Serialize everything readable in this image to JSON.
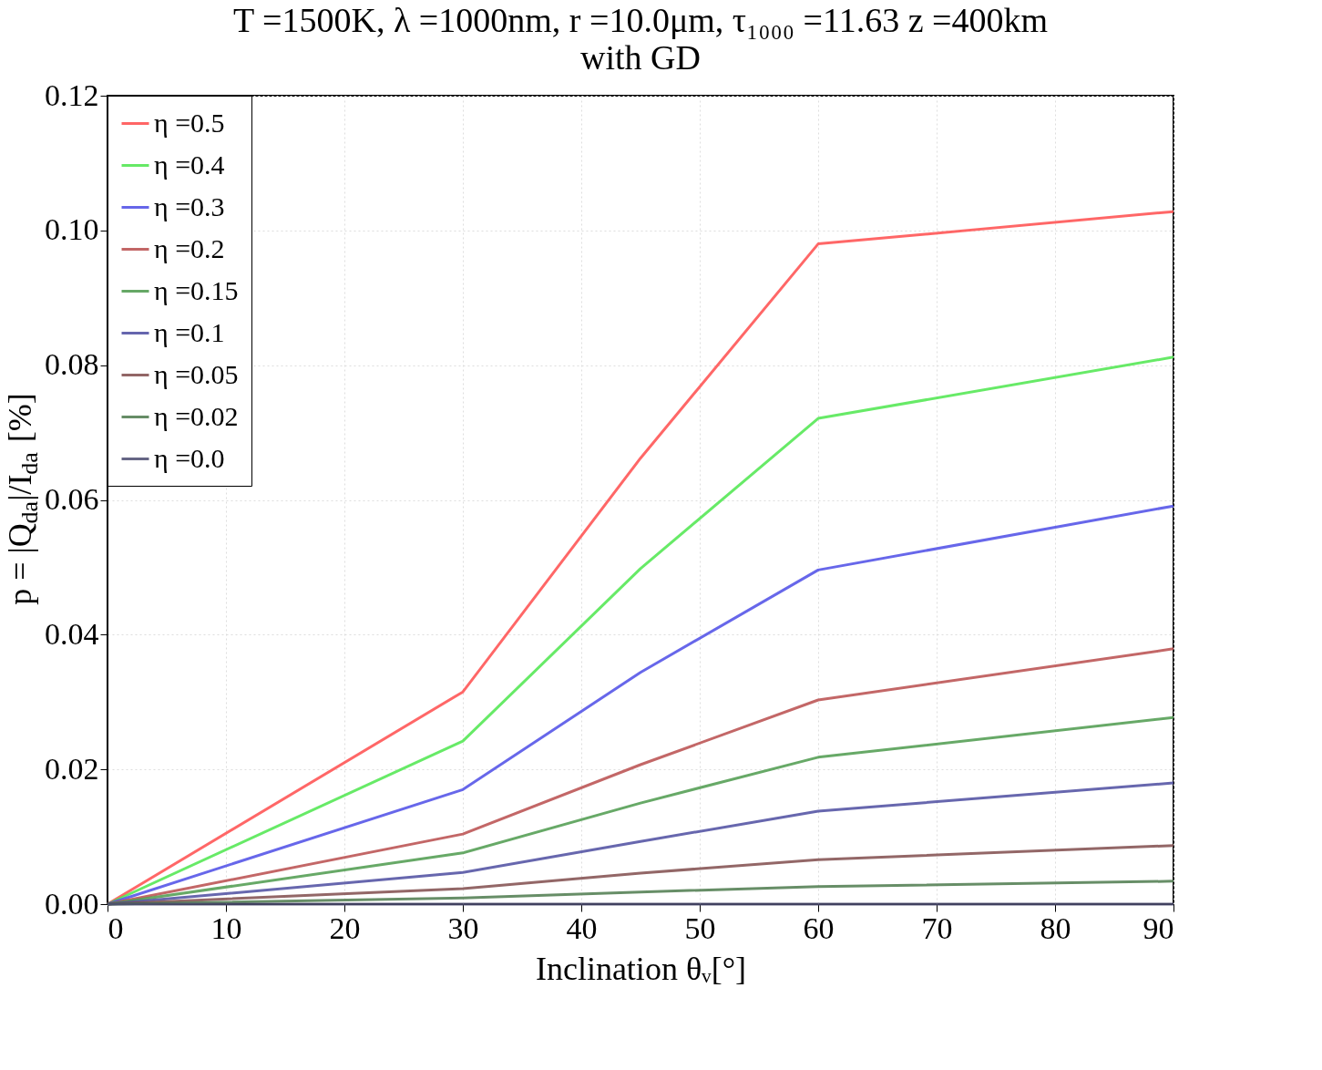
{
  "chart_data": {
    "type": "line",
    "title": "T =1500K, λ =1000nm, r =10.0μm, τ₁₀₀₀ =11.63 z =400km",
    "subtitle": "with GD",
    "xlabel": "Inclination θᵥ[°]",
    "ylabel": "p = |Q$_{da}$|/I$_{da}$ [%]",
    "x": [
      0,
      30,
      45,
      60,
      90
    ],
    "series": [
      {
        "name": "η =0.5",
        "color": "#ff4c4c",
        "values": [
          0,
          0.0315,
          0.0662,
          0.098,
          0.1028
        ]
      },
      {
        "name": "η =0.4",
        "color": "#4ce64c",
        "values": [
          0,
          0.0242,
          0.0498,
          0.0721,
          0.0812
        ]
      },
      {
        "name": "η =0.3",
        "color": "#4c4ce6",
        "values": [
          0,
          0.017,
          0.0344,
          0.0496,
          0.0591
        ]
      },
      {
        "name": "η =0.2",
        "color": "#b84c4c",
        "values": [
          0,
          0.0104,
          0.0207,
          0.0303,
          0.0379
        ]
      },
      {
        "name": "η =0.15",
        "color": "#4c9a4c",
        "values": [
          0,
          0.0076,
          0.015,
          0.0218,
          0.0277
        ]
      },
      {
        "name": "η =0.1",
        "color": "#4c4ca0",
        "values": [
          0,
          0.0047,
          0.0093,
          0.0138,
          0.018
        ]
      },
      {
        "name": "η =0.05",
        "color": "#804c4c",
        "values": [
          0,
          0.0023,
          0.0046,
          0.0066,
          0.0087
        ]
      },
      {
        "name": "η =0.02",
        "color": "#4c7a4c",
        "values": [
          0,
          0.0009,
          0.0018,
          0.0026,
          0.0034
        ]
      },
      {
        "name": "η =0.0",
        "color": "#4c4c70",
        "values": [
          0,
          0,
          0,
          0,
          0
        ]
      }
    ],
    "xlim": [
      0,
      90
    ],
    "xticks": [
      0,
      10,
      20,
      30,
      40,
      50,
      60,
      70,
      80,
      90
    ],
    "ylim": [
      0,
      0.12
    ],
    "yticks": [
      {
        "value": 0,
        "label": "0.00"
      },
      {
        "value": 0.02,
        "label": "0.02"
      },
      {
        "value": 0.04,
        "label": "0.04"
      },
      {
        "value": 0.06,
        "label": "0.06"
      },
      {
        "value": 0.08,
        "label": "0.08"
      },
      {
        "value": 0.1,
        "label": "0.10"
      },
      {
        "value": 0.12,
        "label": "0.12"
      }
    ],
    "grid": true,
    "legend": "top left",
    "line_style": "solid",
    "marker": "none"
  }
}
